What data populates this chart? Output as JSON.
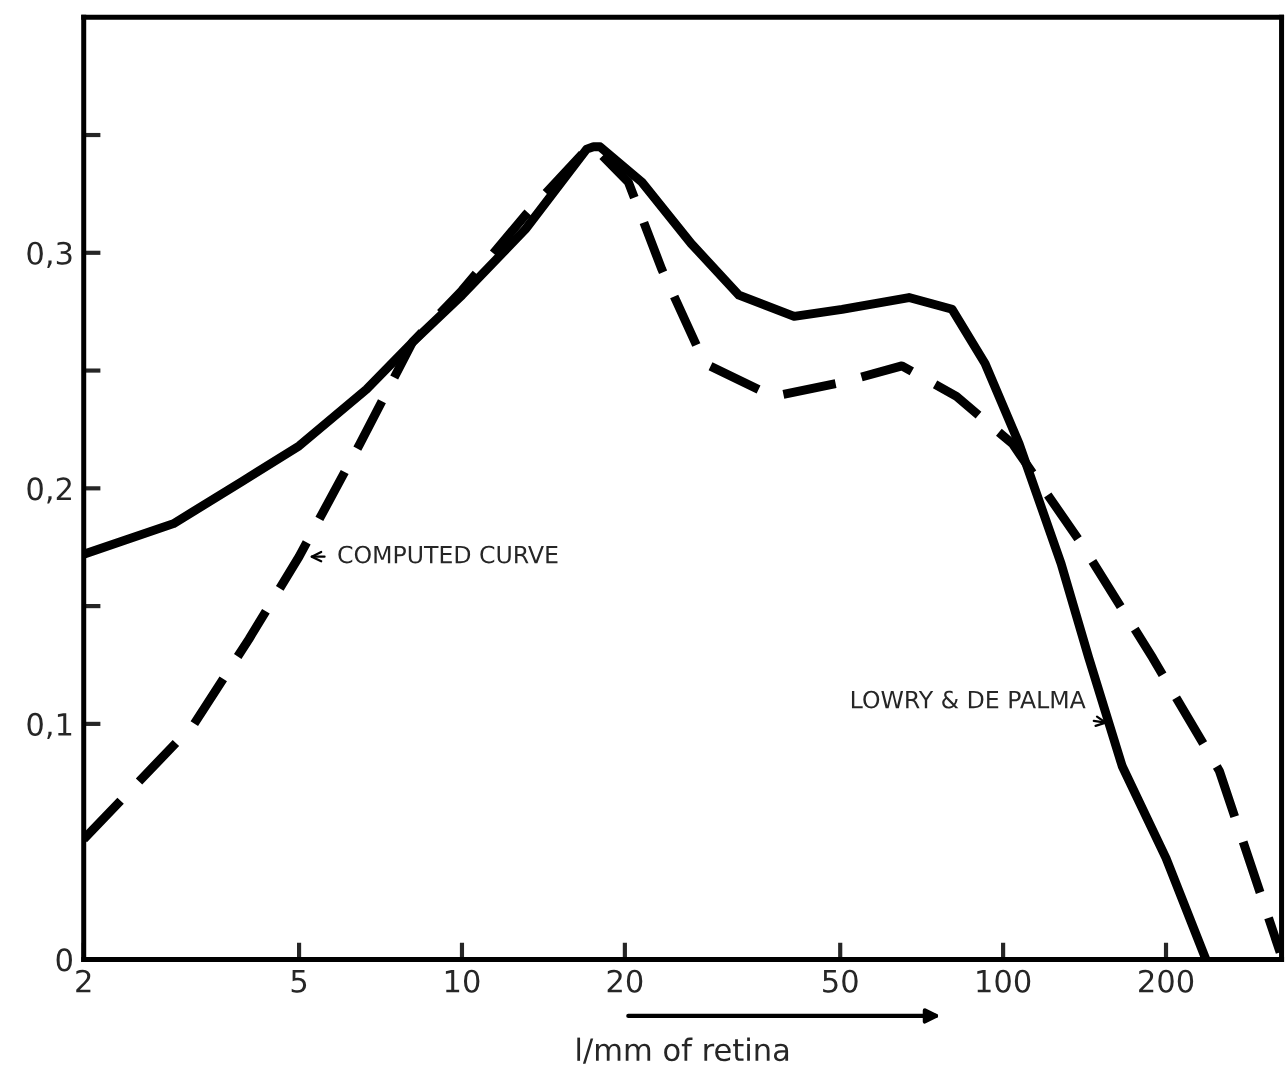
{
  "chart_data": {
    "type": "line",
    "xlabel": "l/mm of retina",
    "log": "x",
    "xlim": [
      2,
      327
    ],
    "ylim": [
      0,
      0.4
    ],
    "xticks": [
      2,
      5,
      10,
      20,
      50,
      100,
      200
    ],
    "yticks": [
      {
        "value": 0,
        "label": "0"
      },
      {
        "value": 0.1,
        "label": "0,1"
      },
      {
        "value": 0.15,
        "label": null
      },
      {
        "value": 0.2,
        "label": "0,2"
      },
      {
        "value": 0.25,
        "label": null
      },
      {
        "value": 0.3,
        "label": "0,3"
      },
      {
        "value": 0.35,
        "label": null
      }
    ],
    "grid": false,
    "legend": false,
    "series": [
      {
        "color": "#000000",
        "line_style": "solid",
        "x": [
          2,
          2.93,
          3.93,
          5,
          6.66,
          8.1,
          10,
          13.1,
          17,
          17.5,
          18,
          21.5,
          26.5,
          32.5,
          41.1,
          50.4,
          67,
          80.5,
          92.6,
          107,
          128,
          144,
          166,
          200,
          237
        ],
        "values": [
          0.172,
          0.185,
          0.203,
          0.218,
          0.242,
          0.262,
          0.282,
          0.31,
          0.344,
          0.345,
          0.345,
          0.33,
          0.304,
          0.282,
          0.273,
          0.276,
          0.281,
          0.276,
          0.253,
          0.219,
          0.168,
          0.128,
          0.082,
          0.043,
          0
        ]
      },
      {
        "color": "#000000",
        "line_style": "dashed",
        "x": [
          2,
          3.2,
          4.04,
          5,
          6.48,
          8.1,
          10,
          13.1,
          17,
          17.5,
          20.3,
          23.4,
          28.1,
          37.6,
          50.4,
          65,
          82,
          104,
          140,
          189,
          251,
          325
        ],
        "values": [
          0.051,
          0.1,
          0.136,
          0.171,
          0.219,
          0.262,
          0.284,
          0.316,
          0.344,
          0.345,
          0.33,
          0.293,
          0.253,
          0.239,
          0.245,
          0.252,
          0.239,
          0.219,
          0.176,
          0.128,
          0.08,
          0.003
        ]
      }
    ],
    "annotations": [
      {
        "text": "COMPUTED CURVE",
        "x": 5.1,
        "y": 0.171
      },
      {
        "text": "LOWRY & DE PALMA",
        "x": 160,
        "y": 0.1
      }
    ]
  }
}
